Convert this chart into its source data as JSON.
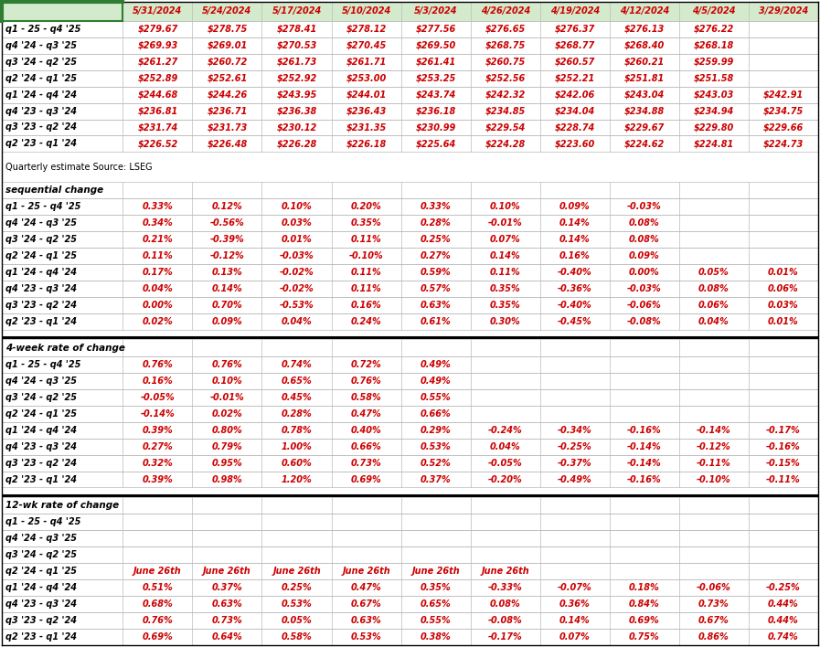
{
  "col_headers": [
    "",
    "5/31/2024",
    "5/24/2024",
    "5/17/2024",
    "5/10/2024",
    "5/3/2024",
    "4/26/2024",
    "4/19/2024",
    "4/12/2024",
    "4/5/2024",
    "3/29/2024"
  ],
  "section1_rows": [
    [
      "q1 - 25 - q4 '25",
      "$279.67",
      "$278.75",
      "$278.41",
      "$278.12",
      "$277.56",
      "$276.65",
      "$276.37",
      "$276.13",
      "$276.22",
      ""
    ],
    [
      "q4 '24 - q3 '25",
      "$269.93",
      "$269.01",
      "$270.53",
      "$270.45",
      "$269.50",
      "$268.75",
      "$268.77",
      "$268.40",
      "$268.18",
      ""
    ],
    [
      "q3 '24 - q2 '25",
      "$261.27",
      "$260.72",
      "$261.73",
      "$261.71",
      "$261.41",
      "$260.75",
      "$260.57",
      "$260.21",
      "$259.99",
      ""
    ],
    [
      "q2 '24 - q1 '25",
      "$252.89",
      "$252.61",
      "$252.92",
      "$253.00",
      "$253.25",
      "$252.56",
      "$252.21",
      "$251.81",
      "$251.58",
      ""
    ],
    [
      "q1 '24 - q4 '24",
      "$244.68",
      "$244.26",
      "$243.95",
      "$244.01",
      "$243.74",
      "$242.32",
      "$242.06",
      "$243.04",
      "$243.03",
      "$242.91"
    ],
    [
      "q4 '23 - q3 '24",
      "$236.81",
      "$236.71",
      "$236.38",
      "$236.43",
      "$236.18",
      "$234.85",
      "$234.04",
      "$234.88",
      "$234.94",
      "$234.75"
    ],
    [
      "q3 '23 - q2 '24",
      "$231.74",
      "$231.73",
      "$230.12",
      "$231.35",
      "$230.99",
      "$229.54",
      "$228.74",
      "$229.67",
      "$229.80",
      "$229.66"
    ],
    [
      "q2 '23 - q1 '24",
      "$226.52",
      "$226.48",
      "$226.28",
      "$226.18",
      "$225.64",
      "$224.28",
      "$223.60",
      "$224.62",
      "$224.81",
      "$224.73"
    ]
  ],
  "section2_label": "sequential change",
  "section2_rows": [
    [
      "q1 - 25 - q4 '25",
      "0.33%",
      "0.12%",
      "0.10%",
      "0.20%",
      "0.33%",
      "0.10%",
      "0.09%",
      "-0.03%",
      "",
      ""
    ],
    [
      "q4 '24 - q3 '25",
      "0.34%",
      "-0.56%",
      "0.03%",
      "0.35%",
      "0.28%",
      "-0.01%",
      "0.14%",
      "0.08%",
      "",
      ""
    ],
    [
      "q3 '24 - q2 '25",
      "0.21%",
      "-0.39%",
      "0.01%",
      "0.11%",
      "0.25%",
      "0.07%",
      "0.14%",
      "0.08%",
      "",
      ""
    ],
    [
      "q2 '24 - q1 '25",
      "0.11%",
      "-0.12%",
      "-0.03%",
      "-0.10%",
      "0.27%",
      "0.14%",
      "0.16%",
      "0.09%",
      "",
      ""
    ],
    [
      "q1 '24 - q4 '24",
      "0.17%",
      "0.13%",
      "-0.02%",
      "0.11%",
      "0.59%",
      "0.11%",
      "-0.40%",
      "0.00%",
      "0.05%",
      "0.01%"
    ],
    [
      "q4 '23 - q3 '24",
      "0.04%",
      "0.14%",
      "-0.02%",
      "0.11%",
      "0.57%",
      "0.35%",
      "-0.36%",
      "-0.03%",
      "0.08%",
      "0.06%"
    ],
    [
      "q3 '23 - q2 '24",
      "0.00%",
      "0.70%",
      "-0.53%",
      "0.16%",
      "0.63%",
      "0.35%",
      "-0.40%",
      "-0.06%",
      "0.06%",
      "0.03%"
    ],
    [
      "q2 '23 - q1 '24",
      "0.02%",
      "0.09%",
      "0.04%",
      "0.24%",
      "0.61%",
      "0.30%",
      "-0.45%",
      "-0.08%",
      "0.04%",
      "0.01%"
    ]
  ],
  "section3_label": "4-week rate of change",
  "section3_rows": [
    [
      "q1 - 25 - q4 '25",
      "0.76%",
      "0.76%",
      "0.74%",
      "0.72%",
      "0.49%",
      "",
      "",
      "",
      "",
      ""
    ],
    [
      "q4 '24 - q3 '25",
      "0.16%",
      "0.10%",
      "0.65%",
      "0.76%",
      "0.49%",
      "",
      "",
      "",
      "",
      ""
    ],
    [
      "q3 '24 - q2 '25",
      "-0.05%",
      "-0.01%",
      "0.45%",
      "0.58%",
      "0.55%",
      "",
      "",
      "",
      "",
      ""
    ],
    [
      "q2 '24 - q1 '25",
      "-0.14%",
      "0.02%",
      "0.28%",
      "0.47%",
      "0.66%",
      "",
      "",
      "",
      "",
      ""
    ],
    [
      "q1 '24 - q4 '24",
      "0.39%",
      "0.80%",
      "0.78%",
      "0.40%",
      "0.29%",
      "-0.24%",
      "-0.34%",
      "-0.16%",
      "-0.14%",
      "-0.17%"
    ],
    [
      "q4 '23 - q3 '24",
      "0.27%",
      "0.79%",
      "1.00%",
      "0.66%",
      "0.53%",
      "0.04%",
      "-0.25%",
      "-0.14%",
      "-0.12%",
      "-0.16%"
    ],
    [
      "q3 '23 - q2 '24",
      "0.32%",
      "0.95%",
      "0.60%",
      "0.73%",
      "0.52%",
      "-0.05%",
      "-0.37%",
      "-0.14%",
      "-0.11%",
      "-0.15%"
    ],
    [
      "q2 '23 - q1 '24",
      "0.39%",
      "0.98%",
      "1.20%",
      "0.69%",
      "0.37%",
      "-0.20%",
      "-0.49%",
      "-0.16%",
      "-0.10%",
      "-0.11%"
    ]
  ],
  "section4_label": "12-wk rate of change",
  "section4_rows": [
    [
      "q1 - 25 - q4 '25",
      "",
      "",
      "",
      "",
      "",
      "",
      "",
      "",
      "",
      ""
    ],
    [
      "q4 '24 - q3 '25",
      "",
      "",
      "",
      "",
      "",
      "",
      "",
      "",
      "",
      ""
    ],
    [
      "q3 '24 - q2 '25",
      "",
      "",
      "",
      "",
      "",
      "",
      "",
      "",
      "",
      ""
    ],
    [
      "q2 '24 - q1 '25",
      "June 26th",
      "June 26th",
      "June 26th",
      "June 26th",
      "June 26th",
      "June 26th",
      "",
      "",
      "",
      ""
    ],
    [
      "q1 '24 - q4 '24",
      "0.51%",
      "0.37%",
      "0.25%",
      "0.47%",
      "0.35%",
      "-0.33%",
      "-0.07%",
      "0.18%",
      "-0.06%",
      "-0.25%"
    ],
    [
      "q4 '23 - q3 '24",
      "0.68%",
      "0.63%",
      "0.53%",
      "0.67%",
      "0.65%",
      "0.08%",
      "0.36%",
      "0.84%",
      "0.73%",
      "0.44%"
    ],
    [
      "q3 '23 - q2 '24",
      "0.76%",
      "0.73%",
      "0.05%",
      "0.63%",
      "0.55%",
      "-0.08%",
      "0.14%",
      "0.69%",
      "0.67%",
      "0.44%"
    ],
    [
      "q2 '23 - q1 '24",
      "0.69%",
      "0.64%",
      "0.58%",
      "0.53%",
      "0.38%",
      "-0.17%",
      "0.07%",
      "0.75%",
      "0.86%",
      "0.74%"
    ]
  ],
  "header_bg": "#d4eacc",
  "source_text": "Quarterly estimate Source: LSEG",
  "n_cols": 11,
  "col_widths_rel": [
    1.74,
    1.0,
    1.0,
    1.0,
    1.0,
    1.0,
    1.0,
    1.0,
    1.0,
    1.0,
    1.0
  ],
  "red_color": "#cc0000",
  "black_color": "#000000",
  "green_border": "#2e7d32",
  "grid_color": "#bbbbbb",
  "thick_line_color": "#000000"
}
